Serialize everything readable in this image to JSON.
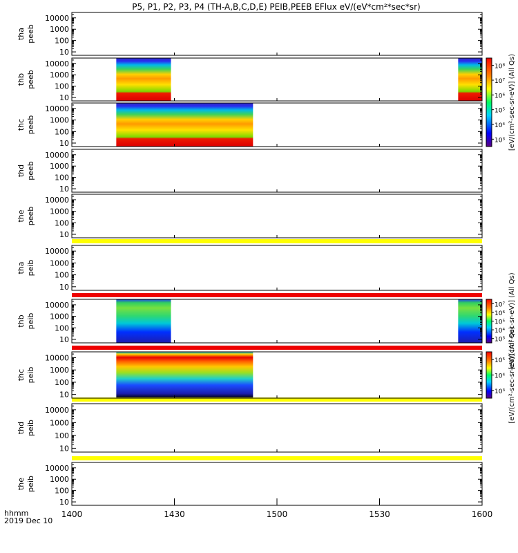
{
  "title": "P5, P1, P2, P3, P4 (TH-A,B,C,D,E) PEIB,PEEB EFlux eV/(eV*cm²*sec*sr)",
  "time_axis": {
    "label": "hhmm",
    "date": "2019 Dec 10",
    "ticks": [
      "1400",
      "1430",
      "1500",
      "1530",
      "1600"
    ],
    "range_hhmm": [
      "1400",
      "1600"
    ]
  },
  "energy_ticks": [
    "10",
    "100",
    "1000",
    "10000"
  ],
  "colorbars": [
    {
      "label": "[eV/(cm²-sec-sr-eV)] (All Qs)",
      "ticks": [
        "10³",
        "10⁴",
        "10⁵",
        "10⁶",
        "10⁷",
        "10⁸"
      ],
      "panels": "electron"
    },
    {
      "label": "[eV/(cm²-sec-sr-eV)] (All Qs)",
      "ticks": [
        "10³",
        "10⁴",
        "10⁵",
        "10⁶",
        "10⁷"
      ],
      "panels": "thb-ion"
    },
    {
      "label": "[eV/(cm²-sec-sr-eV)] (All Qs)",
      "ticks": [
        "10³",
        "10⁴",
        "10⁵"
      ],
      "panels": "thc-ion"
    }
  ],
  "panels": [
    {
      "label": "tha\npeeb",
      "probe": "tha",
      "species": "peeb",
      "top_bar": "",
      "data_intervals": []
    },
    {
      "label": "thb\npeeb",
      "probe": "thb",
      "species": "peeb",
      "top_bar": "",
      "data_intervals": [
        [
          "1413",
          "1429"
        ],
        [
          "1553",
          "1600"
        ]
      ]
    },
    {
      "label": "thc\npeeb",
      "probe": "thc",
      "species": "peeb",
      "top_bar": "",
      "data_intervals": [
        [
          "1413",
          "1453"
        ]
      ]
    },
    {
      "label": "thd\npeeb",
      "probe": "thd",
      "species": "peeb",
      "top_bar": "",
      "data_intervals": []
    },
    {
      "label": "the\npeeb",
      "probe": "the",
      "species": "peeb",
      "top_bar": "",
      "data_intervals": []
    },
    {
      "label": "tha\npeib",
      "probe": "tha",
      "species": "peib",
      "top_bar": "#ffff00",
      "data_intervals": []
    },
    {
      "label": "thb\npeib",
      "probe": "thb",
      "species": "peib",
      "top_bar": "#ee0000",
      "data_intervals": [
        [
          "1413",
          "1429"
        ],
        [
          "1553",
          "1600"
        ]
      ]
    },
    {
      "label": "thc\npeib",
      "probe": "thc",
      "species": "peib",
      "top_bar": "#ee0000",
      "data_intervals": [
        [
          "1413",
          "1453"
        ]
      ]
    },
    {
      "label": "thd\npeib",
      "probe": "thd",
      "species": "peib",
      "top_bar": "#ffff00",
      "data_intervals": []
    },
    {
      "label": "the\npeib",
      "probe": "the",
      "species": "peib",
      "top_bar": "#ffff00",
      "data_intervals": []
    }
  ],
  "chart_data": {
    "type": "heatmap",
    "title": "P5, P1, P2, P3, P4 (TH-A,B,C,D,E) PEIB,PEEB EFlux eV/(eV*cm²*sec*sr)",
    "xlabel": "hhmm",
    "ylabel": "",
    "xlim": [
      "1400",
      "1600"
    ],
    "ylim": [
      5,
      30000
    ],
    "yscale": "log",
    "grid": false,
    "series": [
      {
        "name": "thb peeb",
        "intervals": [
          [
            "1413",
            "1429"
          ],
          [
            "1553",
            "1600"
          ]
        ]
      },
      {
        "name": "thc peeb",
        "intervals": [
          [
            "1413",
            "1453"
          ]
        ]
      },
      {
        "name": "thb peib",
        "intervals": [
          [
            "1413",
            "1429"
          ],
          [
            "1553",
            "1600"
          ]
        ]
      },
      {
        "name": "thc peib",
        "intervals": [
          [
            "1413",
            "1453"
          ]
        ]
      }
    ]
  }
}
